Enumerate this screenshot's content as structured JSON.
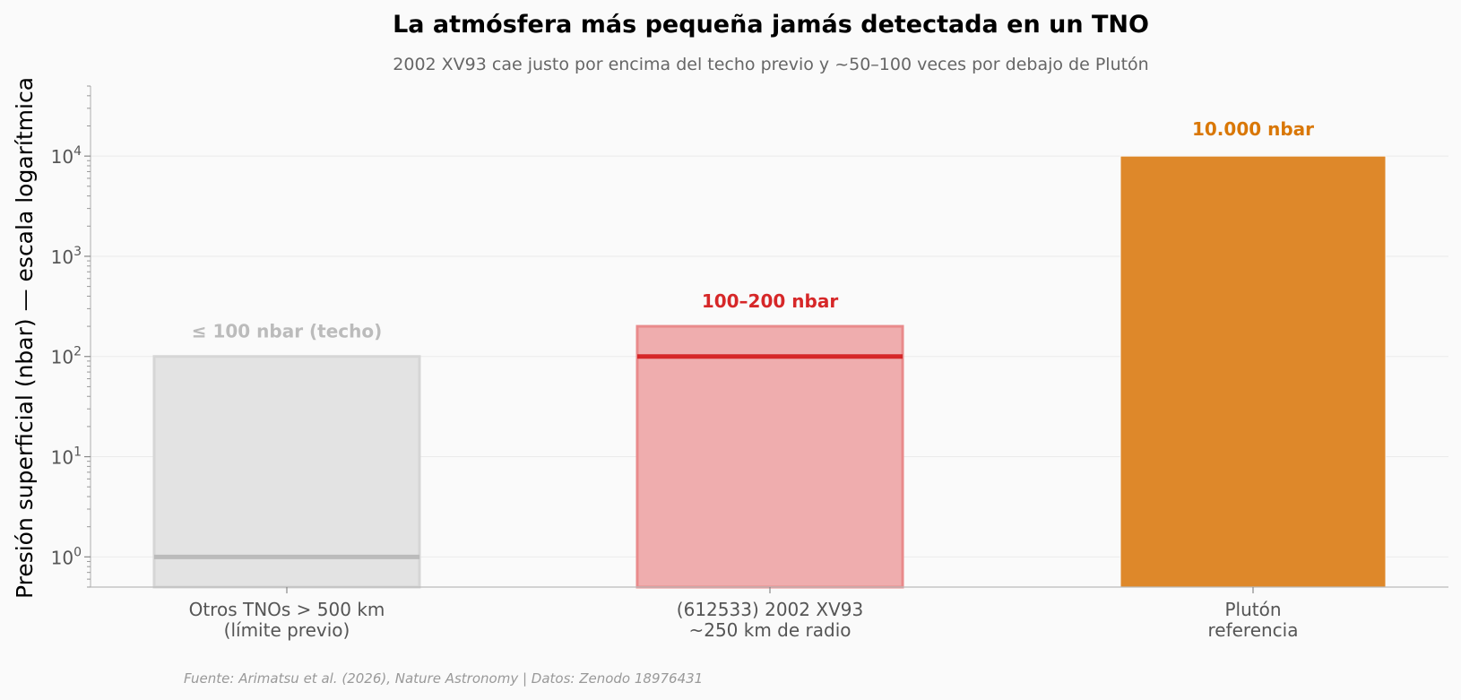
{
  "title": "La atmósfera más pequeña jamás detectada en un TNO",
  "subtitle": "2002 XV93 cae justo por encima del techo previo y ~50–100 veces por debajo de Plutón",
  "source": "Fuente: Arimatsu et al. (2026), Nature Astronomy | Datos: Zenodo 18976431",
  "chart_data": {
    "type": "bar",
    "ylabel": "Presión superficial (nbar) — escala logarítmica",
    "yscale": "log",
    "ylim": [
      0.5,
      50000
    ],
    "yticks": [
      {
        "value": 1,
        "base": "10",
        "exp": "0"
      },
      {
        "value": 10,
        "base": "10",
        "exp": "1"
      },
      {
        "value": 100,
        "base": "10",
        "exp": "2"
      },
      {
        "value": 1000,
        "base": "10",
        "exp": "3"
      },
      {
        "value": 10000,
        "base": "10",
        "exp": "4"
      }
    ],
    "grid": true,
    "categories": [
      {
        "line1": "Otros TNOs > 500 km",
        "line2": "(límite previo)"
      },
      {
        "line1": "(612533) 2002 XV93",
        "line2": "~250 km de radio"
      },
      {
        "line1": "Plutón",
        "line2": "referencia"
      }
    ],
    "bars": [
      {
        "kind": "upper_limit",
        "top": 100,
        "marker": 1,
        "label": "≤ 100 nbar (techo)",
        "color": "#bbbbbb",
        "fill": "#e3e3e3"
      },
      {
        "kind": "range",
        "low": 100,
        "high": 200,
        "label": "100–200 nbar",
        "color": "#d62728",
        "fill": "#efadae"
      },
      {
        "kind": "value",
        "value": 10000,
        "label": "10.000 nbar",
        "color": "#d97706",
        "fill": "#de882a"
      }
    ]
  }
}
